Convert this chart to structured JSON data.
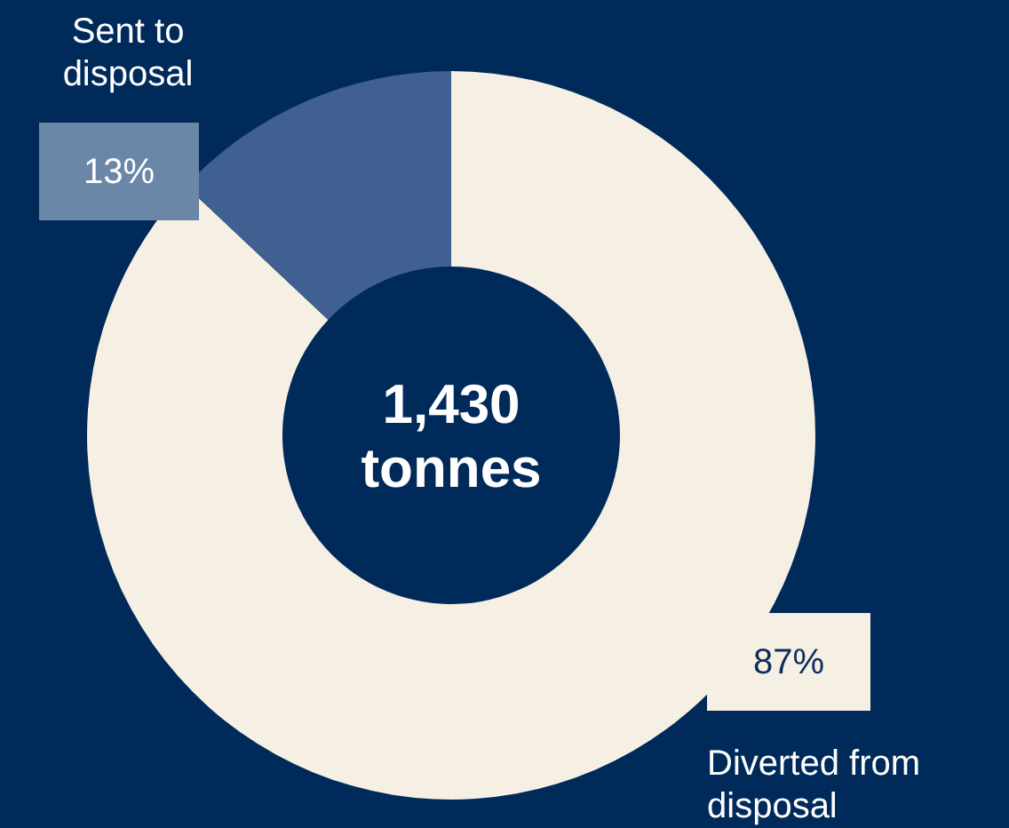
{
  "chart_data": {
    "type": "donut",
    "categories": [
      "Diverted from disposal",
      "Sent to disposal"
    ],
    "values": [
      87,
      13
    ],
    "value_labels": [
      "87%",
      "13%"
    ],
    "colors": [
      "#f6efe3",
      "#3f6090"
    ],
    "annotations": [
      "1,430 tonnes"
    ]
  }
}
